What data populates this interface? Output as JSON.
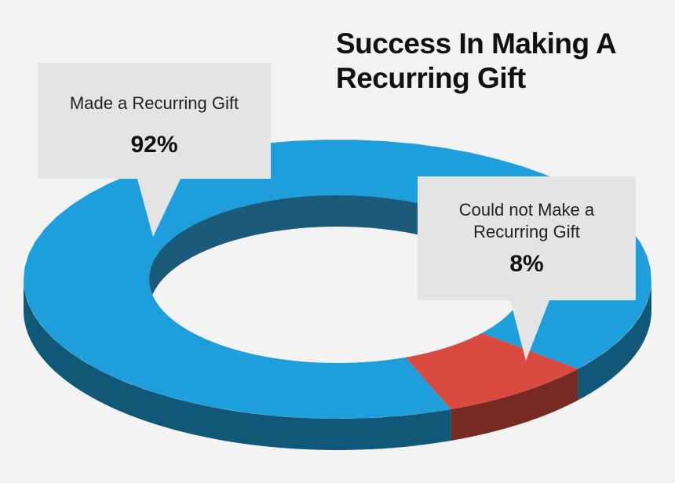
{
  "chart_data": {
    "type": "pie",
    "donut": true,
    "title": "Success In Making A Recurring Gift",
    "categories": [
      "Made a Recurring Gift",
      "Could not Make a Recurring Gift"
    ],
    "values": [
      92,
      8
    ],
    "value_labels": [
      "92%",
      "8%"
    ],
    "colors": [
      "#1e9fdb",
      "#d94a40"
    ]
  }
}
